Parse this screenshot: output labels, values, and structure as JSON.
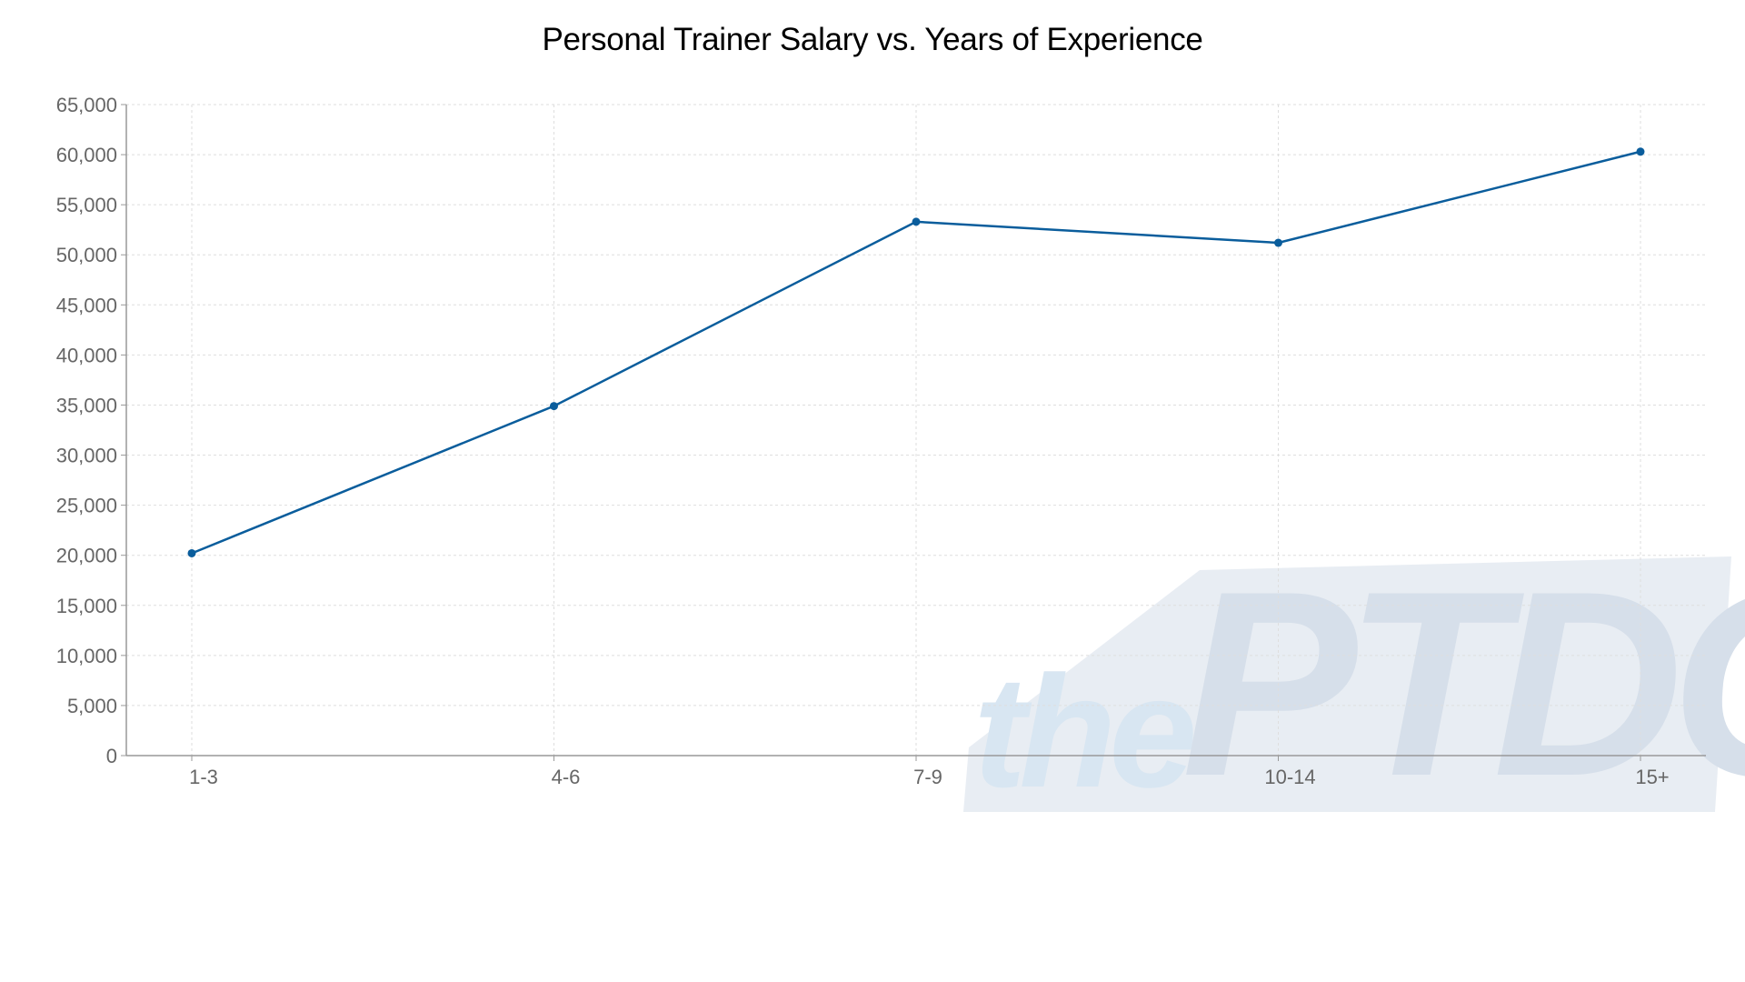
{
  "chart_data": {
    "type": "line",
    "title": "Personal Trainer Salary vs. Years of Experience",
    "xlabel": "",
    "ylabel": "",
    "categories": [
      "1-3",
      "4-6",
      "7-9",
      "10-14",
      "15+"
    ],
    "series": [
      {
        "values": [
          20200,
          34900,
          53300,
          51200,
          60300
        ]
      }
    ],
    "ylim": [
      0,
      65000
    ],
    "yticks": [
      0,
      5000,
      10000,
      15000,
      20000,
      25000,
      30000,
      35000,
      40000,
      45000,
      50000,
      55000,
      60000,
      65000
    ],
    "ytick_labels": [
      "0",
      "5,000",
      "10,000",
      "15,000",
      "20,000",
      "25,000",
      "30,000",
      "35,000",
      "40,000",
      "45,000",
      "50,000",
      "55,000",
      "60,000",
      "65,000"
    ],
    "grid": true,
    "legend": "none"
  },
  "watermark": {
    "text_small": "the",
    "text_large": "PTDC"
  },
  "colors": {
    "line": "#0a5d9c",
    "grid": "#dedede",
    "axis": "#999999",
    "tick_text": "#666666",
    "watermark_light": "#d8e6f2",
    "watermark_dark": "#d6dfea"
  }
}
